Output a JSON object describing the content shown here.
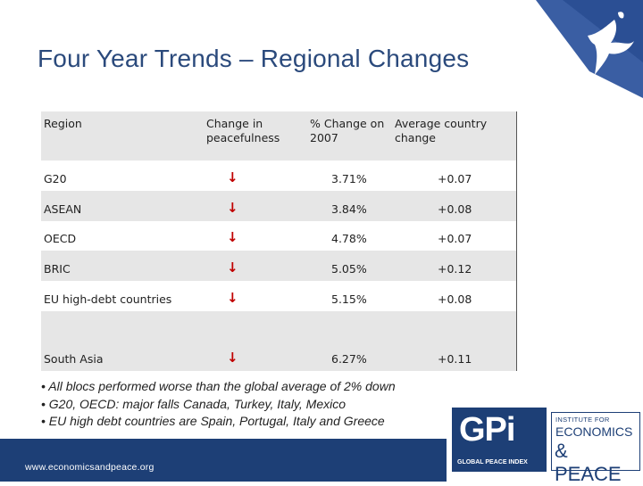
{
  "title": "Four Year Trends – Regional Changes",
  "table": {
    "headers": {
      "region": "Region",
      "change": "Change in peacefulness",
      "pct_line1": "% Change on",
      "pct_line2": "2007",
      "avg_line1": "Average country",
      "avg_line2": "change"
    },
    "rows": [
      {
        "region": "G20",
        "arrow": "↓",
        "pct": "3.71%",
        "avg": "+0.07"
      },
      {
        "region": "ASEAN",
        "arrow": "↓",
        "pct": "3.84%",
        "avg": "+0.08"
      },
      {
        "region": "OECD",
        "arrow": "↓",
        "pct": "4.78%",
        "avg": "+0.07"
      },
      {
        "region": "BRIC",
        "arrow": "↓",
        "pct": "5.05%",
        "avg": "+0.12"
      },
      {
        "region": "EU high-debt countries",
        "arrow": "↓",
        "pct": "5.15%",
        "avg": "+0.08"
      },
      {
        "region": "South Asia",
        "arrow": "↓",
        "pct": "6.27%",
        "avg": "+0.11"
      }
    ]
  },
  "notes": [
    "• All blocs performed worse than the global average of 2% down",
    "• G20, OECD: major falls Canada, Turkey, Italy, Mexico",
    "• EU high debt countries are Spain, Portugal, Italy and Greece"
  ],
  "footer": {
    "url": "www.economicsandpeace.org"
  },
  "logos": {
    "gpi_main": "GPi",
    "gpi_sub": "GLOBAL PEACE INDEX",
    "iep_line1": "INSTITUTE FOR",
    "iep_line2": "ECONOMICS",
    "iep_line3": "& PEACE"
  },
  "colors": {
    "title": "#2b4a7c",
    "brand_blue": "#1d3f76",
    "arrow": "#c00000",
    "stripe": "#e6e6e6"
  }
}
